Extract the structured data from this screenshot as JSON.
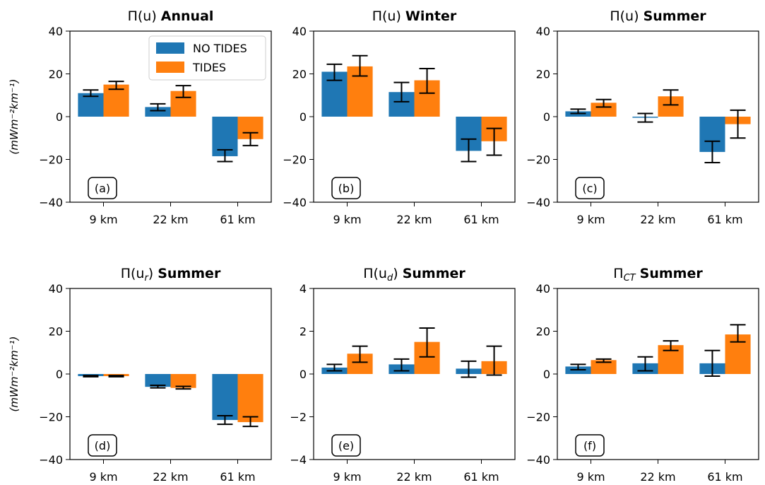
{
  "legend": {
    "labels": [
      "NO TIDES",
      "TIDES"
    ]
  },
  "colors": {
    "no_tides": "#1f77b4",
    "tides": "#ff7f0e"
  },
  "chart_data": [
    {
      "type": "bar",
      "title_main": "Π(u) ",
      "title_bold": "Annual",
      "ylabel": "(mWm⁻²km⁻¹)",
      "panel_label": "(a)",
      "categories": [
        "9 km",
        "22 km",
        "61 km"
      ],
      "ylim": [
        -40,
        40
      ],
      "yticks": [
        "40",
        "20",
        "0",
        "−20",
        "−40"
      ],
      "series": [
        {
          "name": "NO TIDES",
          "values": [
            11,
            4.5,
            -18.5
          ],
          "err_low": [
            9.5,
            2.8,
            -21
          ],
          "err_high": [
            12.5,
            6,
            -15.5
          ]
        },
        {
          "name": "TIDES",
          "values": [
            15,
            12,
            -10.5
          ],
          "err_low": [
            12.8,
            9,
            -13.5
          ],
          "err_high": [
            16.5,
            14.5,
            -7.5
          ]
        }
      ],
      "legend": true
    },
    {
      "type": "bar",
      "title_main": "Π(u) ",
      "title_bold": "Winter",
      "ylabel": "",
      "panel_label": "(b)",
      "categories": [
        "9 km",
        "22 km",
        "61 km"
      ],
      "ylim": [
        -40,
        40
      ],
      "yticks": [
        "40",
        "20",
        "0",
        "−20",
        "−40"
      ],
      "series": [
        {
          "name": "NO TIDES",
          "values": [
            21,
            11.5,
            -16
          ],
          "err_low": [
            17,
            7,
            -21
          ],
          "err_high": [
            24.5,
            16,
            -10.5
          ]
        },
        {
          "name": "TIDES",
          "values": [
            23.5,
            17,
            -11.5
          ],
          "err_low": [
            19,
            11,
            -18
          ],
          "err_high": [
            28.5,
            22.5,
            -5.5
          ]
        }
      ],
      "legend": false
    },
    {
      "type": "bar",
      "title_main": "Π(u) ",
      "title_bold": "Summer",
      "ylabel": "",
      "panel_label": "(c)",
      "categories": [
        "9 km",
        "22 km",
        "61 km"
      ],
      "ylim": [
        -40,
        40
      ],
      "yticks": [
        "40",
        "20",
        "0",
        "−20",
        "−40"
      ],
      "series": [
        {
          "name": "NO TIDES",
          "values": [
            2.5,
            -0.5,
            -16.5
          ],
          "err_low": [
            1.5,
            -2.5,
            -21.5
          ],
          "err_high": [
            3.5,
            1.5,
            -11.5
          ]
        },
        {
          "name": "TIDES",
          "values": [
            6.5,
            9.5,
            -3.5
          ],
          "err_low": [
            4.5,
            5.5,
            -10
          ],
          "err_high": [
            8,
            12.5,
            3
          ]
        }
      ],
      "legend": false
    },
    {
      "type": "bar",
      "title_main": "Π(u",
      "title_sub": "r",
      "title_close": ") ",
      "title_bold": "Summer",
      "ylabel": "(mWm⁻²km⁻¹)",
      "panel_label": "(d)",
      "categories": [
        "9 km",
        "22 km",
        "61 km"
      ],
      "ylim": [
        -40,
        40
      ],
      "yticks": [
        "40",
        "20",
        "0",
        "−20",
        "−40"
      ],
      "series": [
        {
          "name": "NO TIDES",
          "values": [
            -1,
            -6,
            -21.5
          ],
          "err_low": [
            -1.3,
            -6.5,
            -23.5
          ],
          "err_high": [
            -0.7,
            -5.3,
            -19.5
          ]
        },
        {
          "name": "TIDES",
          "values": [
            -1,
            -6.5,
            -22.5
          ],
          "err_low": [
            -1.3,
            -7,
            -24.5
          ],
          "err_high": [
            -0.7,
            -5.8,
            -20
          ]
        }
      ],
      "legend": false
    },
    {
      "type": "bar",
      "title_main": "Π(u",
      "title_sub": "d",
      "title_close": ") ",
      "title_bold": "Summer",
      "ylabel": "",
      "panel_label": "(e)",
      "categories": [
        "9 km",
        "22 km",
        "61 km"
      ],
      "ylim": [
        -4,
        4
      ],
      "yticks": [
        "4",
        "2",
        "0",
        "−2",
        "−4"
      ],
      "series": [
        {
          "name": "NO TIDES",
          "values": [
            0.3,
            0.45,
            0.25
          ],
          "err_low": [
            0.15,
            0.15,
            -0.15
          ],
          "err_high": [
            0.45,
            0.7,
            0.6
          ]
        },
        {
          "name": "TIDES",
          "values": [
            0.95,
            1.5,
            0.6
          ],
          "err_low": [
            0.55,
            0.8,
            -0.05
          ],
          "err_high": [
            1.3,
            2.15,
            1.3
          ]
        }
      ],
      "legend": false
    },
    {
      "type": "bar",
      "title_main": "Π",
      "title_sub": "CT",
      "title_close": " ",
      "title_bold": "Summer",
      "ylabel": "",
      "panel_label": "(f)",
      "categories": [
        "9 km",
        "22 km",
        "61 km"
      ],
      "ylim": [
        -40,
        40
      ],
      "yticks": [
        "40",
        "20",
        "0",
        "−20",
        "−40"
      ],
      "series": [
        {
          "name": "NO TIDES",
          "values": [
            3.5,
            5,
            5
          ],
          "err_low": [
            2,
            1.5,
            -1
          ],
          "err_high": [
            4.5,
            8,
            11
          ]
        },
        {
          "name": "TIDES",
          "values": [
            6.5,
            13.5,
            18.5
          ],
          "err_low": [
            5.5,
            11,
            15
          ],
          "err_high": [
            7,
            15.5,
            23
          ]
        }
      ],
      "legend": false
    }
  ]
}
